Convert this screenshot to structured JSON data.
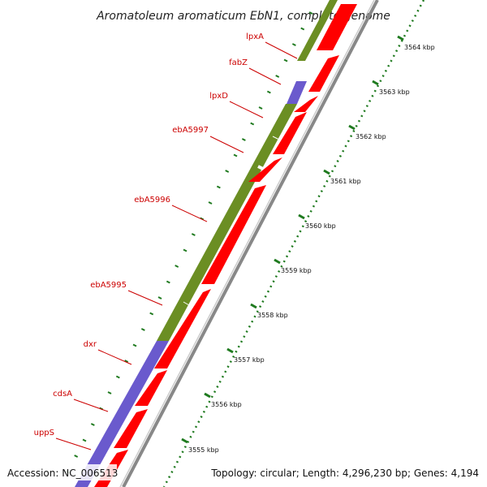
{
  "title": "Aromatoleum aromaticum EbN1, complete genome",
  "accession": "Accession: NC_006513",
  "summary": "Topology: circular; Length: 4,296,230 bp; Genes: 4,194",
  "genes": [
    {
      "name": "lpxA"
    },
    {
      "name": "fabZ"
    },
    {
      "name": "lpxD"
    },
    {
      "name": "ebA5997"
    },
    {
      "name": "ebA5996"
    },
    {
      "name": "ebA5995"
    },
    {
      "name": "dxr"
    },
    {
      "name": "cdsA"
    },
    {
      "name": "uppS"
    }
  ],
  "scale_labels": [
    "3564 kbp",
    "3563 kbp",
    "3562 kbp",
    "3561 kbp",
    "3560 kbp",
    "3559 kbp",
    "3558 kbp",
    "3557 kbp",
    "3556 kbp",
    "3555 kbp"
  ],
  "colors": {
    "cog_olive": "#6b8e23",
    "cog_purple": "#6a5acd",
    "gene_red": "#ff0000",
    "label_red": "#cc0000",
    "tick_green": "#1f7a1f",
    "backbone_gray": "#999999"
  }
}
